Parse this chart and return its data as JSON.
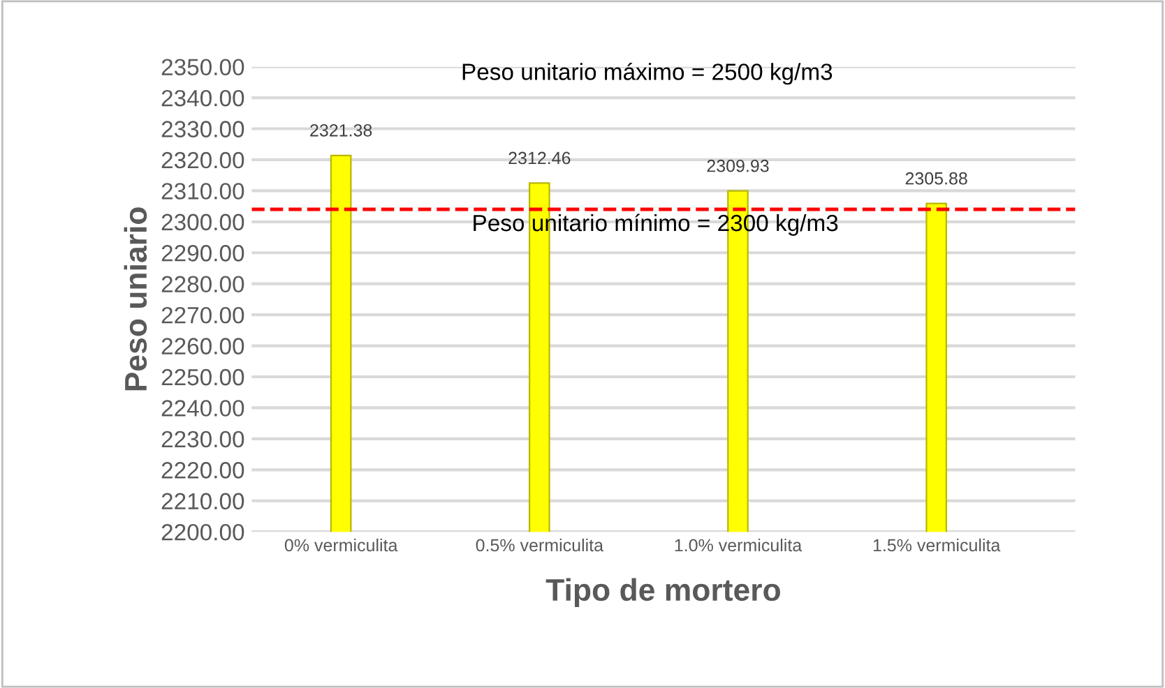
{
  "chart_data": {
    "type": "bar",
    "xlabel": "Tipo de mortero",
    "ylabel": "Peso uniario",
    "categories": [
      "0% vermiculita",
      "0.5% vermiculita",
      "1.0% vermiculita",
      "1.5% vermiculita"
    ],
    "values": [
      2321.38,
      2312.46,
      2309.93,
      2305.88
    ],
    "color": "#ffff00",
    "data_labels": true,
    "ylim": [
      2200,
      2350
    ],
    "yticks": [
      {
        "value": 2200,
        "label": "2200.00"
      },
      {
        "value": 2210,
        "label": "2210.00"
      },
      {
        "value": 2220,
        "label": "2220.00"
      },
      {
        "value": 2230,
        "label": "2230.00"
      },
      {
        "value": 2240,
        "label": "2240.00"
      },
      {
        "value": 2250,
        "label": "2250.00"
      },
      {
        "value": 2260,
        "label": "2260.00"
      },
      {
        "value": 2270,
        "label": "2270.00"
      },
      {
        "value": 2280,
        "label": "2280.00"
      },
      {
        "value": 2290,
        "label": "2290.00"
      },
      {
        "value": 2300,
        "label": "2300.00"
      },
      {
        "value": 2310,
        "label": "2310.00"
      },
      {
        "value": 2320,
        "label": "2320.00"
      },
      {
        "value": 2330,
        "label": "2330.00"
      },
      {
        "value": 2340,
        "label": "2340.00"
      },
      {
        "value": 2350,
        "label": "2350.00"
      }
    ],
    "grid": "y",
    "ref_lines": [
      {
        "axis": "y",
        "value": 2304,
        "color": "#ff0000",
        "line_style": "dashed"
      }
    ],
    "annotations": [
      "Peso unitario máximo = 2500 kg/m3",
      "Peso unitario mínimo = 2300 kg/m3"
    ]
  }
}
